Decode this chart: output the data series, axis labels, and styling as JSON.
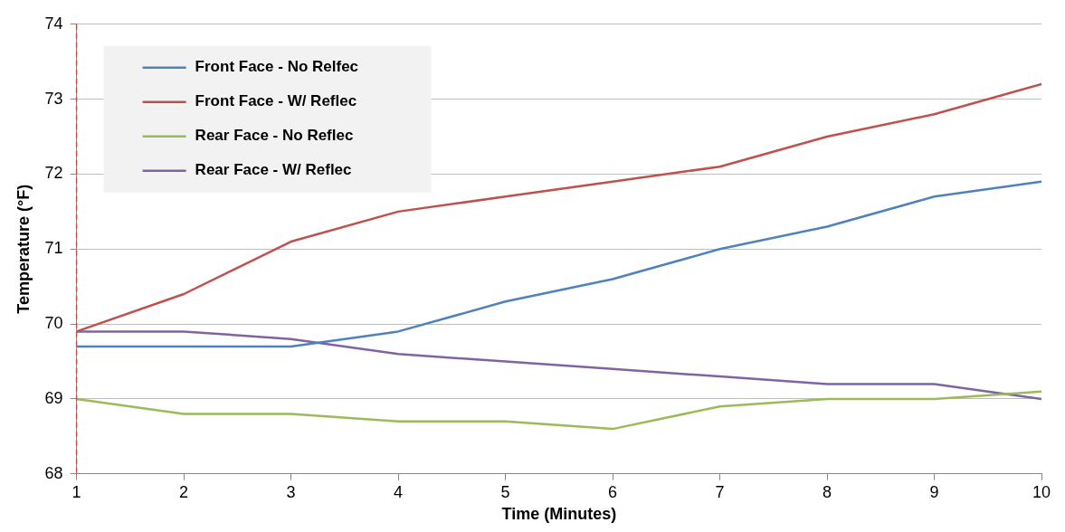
{
  "chart_data": {
    "type": "line",
    "xlabel": "Time (Minutes)",
    "ylabel": "Temperature (°F)",
    "x": [
      1,
      2,
      3,
      4,
      5,
      6,
      7,
      8,
      9,
      10
    ],
    "xlim": [
      1,
      10
    ],
    "xticks": [
      1,
      2,
      3,
      4,
      5,
      6,
      7,
      8,
      9,
      10
    ],
    "ylim": [
      68,
      74
    ],
    "yticks": [
      68,
      69,
      70,
      71,
      72,
      73,
      74
    ],
    "grid": "y",
    "legend": "top left",
    "marker": "none",
    "line_style": "solid",
    "ref_lines": [
      {
        "axis": "x",
        "value": 1,
        "color": "#c0504d",
        "line_style": "dashed"
      }
    ],
    "series": [
      {
        "name": "Front Face - No Relfec",
        "color": "#4f81bd",
        "values": [
          69.7,
          69.7,
          69.7,
          69.9,
          70.3,
          70.6,
          71.0,
          71.3,
          71.7,
          71.9
        ]
      },
      {
        "name": "Front Face - W/ Reflec",
        "color": "#c0504d",
        "values": [
          69.9,
          70.4,
          71.1,
          71.5,
          71.7,
          71.9,
          72.1,
          72.5,
          72.8,
          73.2
        ]
      },
      {
        "name": "Rear Face - No Reflec",
        "color": "#9bbb59",
        "values": [
          69.0,
          68.8,
          68.8,
          68.7,
          68.7,
          68.6,
          68.9,
          69.0,
          69.0,
          69.1
        ]
      },
      {
        "name": "Rear Face - W/ Reflec",
        "color": "#8064a2",
        "values": [
          69.9,
          69.9,
          69.8,
          69.6,
          69.5,
          69.4,
          69.3,
          69.2,
          69.2,
          69.0
        ]
      }
    ]
  }
}
